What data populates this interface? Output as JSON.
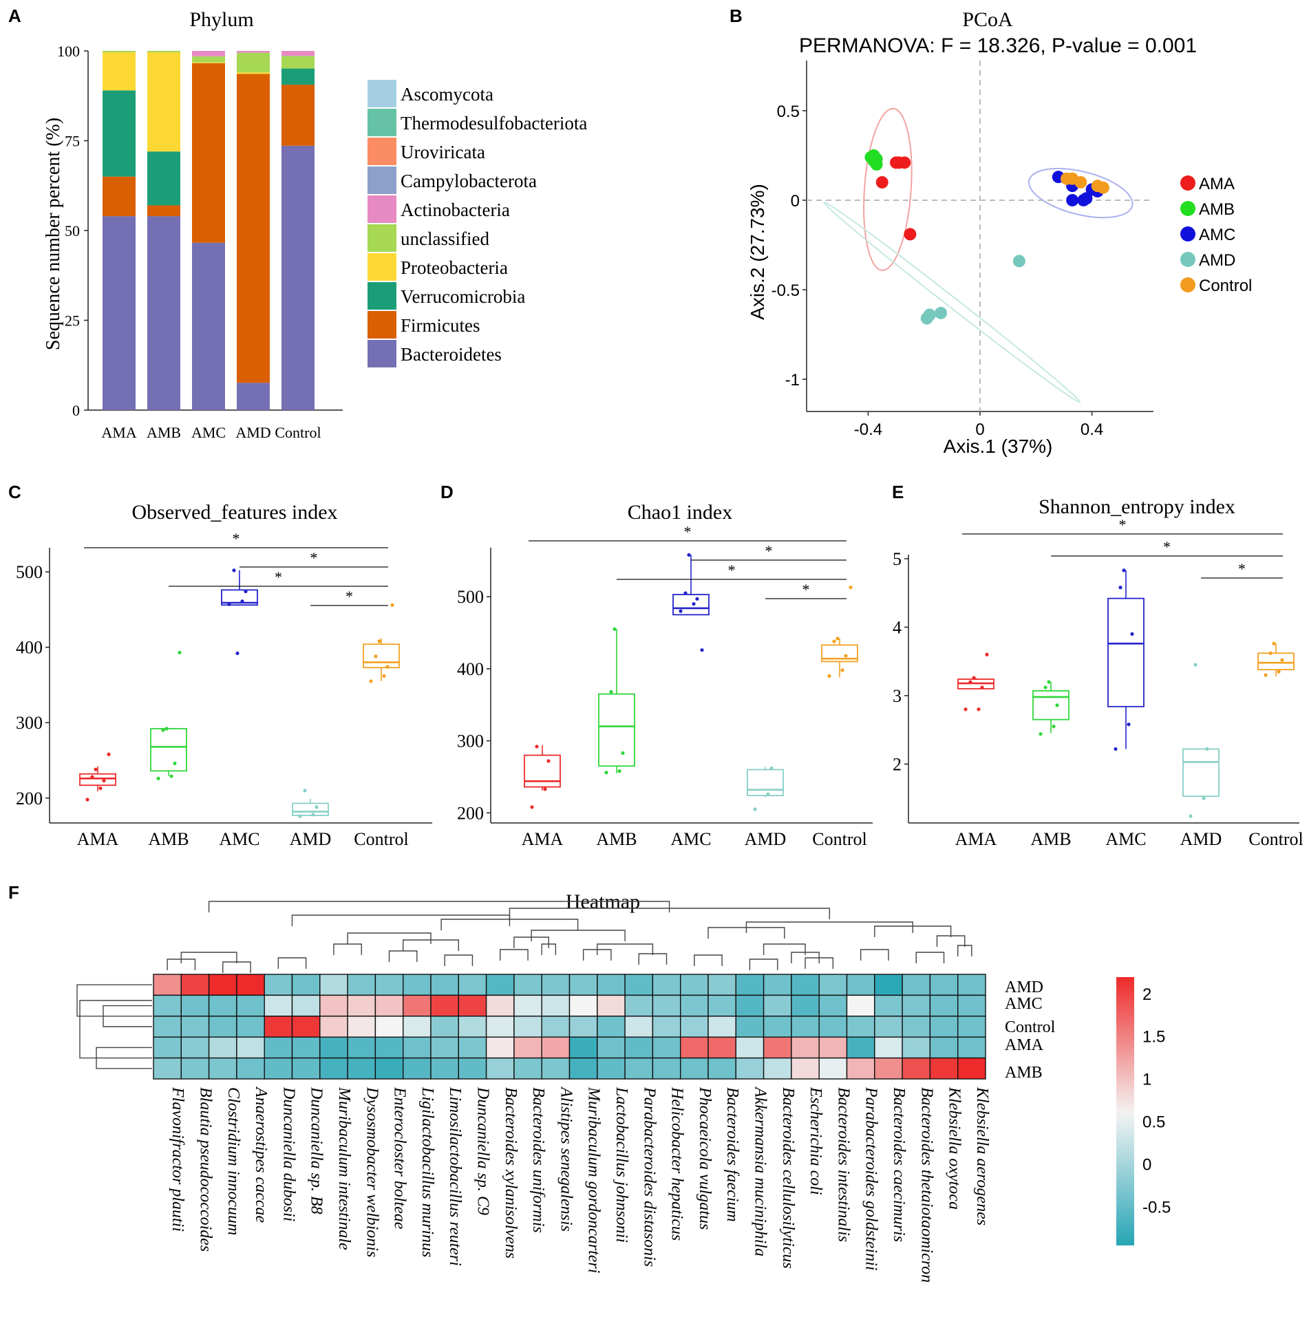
{
  "panel_letters": {
    "a": "A",
    "b": "B",
    "c": "C",
    "d": "D",
    "e": "E",
    "f": "F"
  },
  "chart_data": [
    {
      "id": "A",
      "type": "bar",
      "stacked": true,
      "title": "Phylum",
      "ylabel": "Sequence number percent (%)",
      "xlabel": "",
      "ylim": [
        0,
        100
      ],
      "yticks": [
        "0",
        "25",
        "50",
        "75",
        "100"
      ],
      "categories": [
        "AMA",
        "AMB",
        "AMC",
        "AMD",
        "Control"
      ],
      "series": [
        {
          "name": "Bacteroidetes",
          "color": "#7570b3",
          "values": [
            54,
            54,
            46.6,
            7.6,
            73.6
          ]
        },
        {
          "name": "Firmicutes",
          "color": "#d95f02",
          "values": [
            11,
            3,
            50,
            86,
            17
          ]
        },
        {
          "name": "Verrucomicrobia",
          "color": "#1b9e77",
          "values": [
            24,
            15,
            0,
            0,
            4.5
          ]
        },
        {
          "name": "Proteobacteria",
          "color": "#fdd835",
          "values": [
            10.6,
            27.6,
            0.2,
            0.4,
            0
          ]
        },
        {
          "name": "unclassified",
          "color": "#a6d854",
          "values": [
            0.4,
            0.4,
            1.7,
            5.5,
            3.5
          ]
        },
        {
          "name": "Actinobacteria",
          "color": "#e78ac3",
          "values": [
            0,
            0,
            1.5,
            0.5,
            1.4
          ]
        },
        {
          "name": "Campylobacterota",
          "color": "#8da0cb",
          "values": [
            0,
            0,
            0,
            0,
            0
          ]
        },
        {
          "name": "Uroviricata",
          "color": "#fc8d62",
          "values": [
            0,
            0,
            0,
            0,
            0
          ]
        },
        {
          "name": "Thermodesulfobacteriota",
          "color": "#66c2a5",
          "values": [
            0,
            0,
            0,
            0,
            0
          ]
        },
        {
          "name": "Ascomycota",
          "color": "#a6cee3",
          "values": [
            0,
            0,
            0,
            0,
            0
          ]
        }
      ],
      "legend_order": [
        "Ascomycota",
        "Thermodesulfobacteriota",
        "Uroviricata",
        "Campylobacterota",
        "Actinobacteria",
        "unclassified",
        "Proteobacteria",
        "Verrucomicrobia",
        "Firmicutes",
        "Bacteroidetes"
      ]
    },
    {
      "id": "B",
      "type": "scatter",
      "title": "PCoA",
      "subtitle": "PERMANOVA: F = 18.326, P-value = 0.001",
      "xlabel": "Axis.1 (37%)",
      "ylabel": "Axis.2 (27.73%)",
      "xlim": [
        -0.62,
        0.62
      ],
      "ylim": [
        -1.18,
        0.78
      ],
      "xticks": [
        {
          "v": -0.4,
          "label": "-0.4"
        },
        {
          "v": 0,
          "label": "0"
        },
        {
          "v": 0.4,
          "label": "0.4"
        }
      ],
      "yticks": [
        {
          "v": 0.5,
          "label": "0.5"
        },
        {
          "v": 0,
          "label": "0"
        },
        {
          "v": -0.5,
          "label": "-0.5"
        },
        {
          "v": -1,
          "label": "-1"
        }
      ],
      "groups": [
        {
          "name": "AMA",
          "color": "#ee1c1c",
          "points": [
            [
              -0.29,
              0.21
            ],
            [
              -0.27,
              0.21
            ],
            [
              -0.3,
              0.21
            ],
            [
              -0.35,
              0.1
            ],
            [
              -0.25,
              -0.19
            ]
          ]
        },
        {
          "name": "AMB",
          "color": "#22dd22",
          "points": [
            [
              -0.38,
              0.25
            ],
            [
              -0.37,
              0.23
            ],
            [
              -0.39,
              0.24
            ],
            [
              -0.37,
              0.2
            ],
            [
              -0.38,
              0.22
            ]
          ]
        },
        {
          "name": "AMC",
          "color": "#1111dd",
          "points": [
            [
              0.28,
              0.13
            ],
            [
              0.33,
              0.08
            ],
            [
              0.4,
              0.06
            ],
            [
              0.42,
              0.05
            ],
            [
              0.33,
              0
            ],
            [
              0.37,
              0
            ],
            [
              0.38,
              0.01
            ]
          ]
        },
        {
          "name": "AMD",
          "color": "#76c8bd",
          "points": [
            [
              0.14,
              -0.34
            ],
            [
              -0.18,
              -0.64
            ],
            [
              -0.14,
              -0.63
            ],
            [
              -0.19,
              -0.66
            ]
          ]
        },
        {
          "name": "Control",
          "color": "#f29b1f",
          "points": [
            [
              0.33,
              0.12
            ],
            [
              0.36,
              0.1
            ],
            [
              0.42,
              0.08
            ],
            [
              0.44,
              0.07
            ],
            [
              0.31,
              0.12
            ]
          ]
        }
      ],
      "ellipses": [
        {
          "group": "AMA",
          "cx": -0.33,
          "cy": 0.06,
          "rx": 0.29,
          "ry": 0.13,
          "angle": 86
        },
        {
          "group": "AMC",
          "cx": 0.36,
          "cy": 0.04,
          "rx": 0.19,
          "ry": 0.12,
          "angle": -14
        },
        {
          "group": "AMD",
          "cx": -0.1,
          "cy": -0.57,
          "rx": 0.58,
          "ry": 0.028,
          "angle": -38
        }
      ]
    },
    {
      "id": "C",
      "type": "box",
      "title": "Observed_features index",
      "categories": [
        "AMA",
        "AMB",
        "AMC",
        "AMD",
        "Control"
      ],
      "ylim": [
        167,
        532
      ],
      "yticks": [
        200,
        300,
        400,
        500
      ],
      "boxes": [
        {
          "q1": 217,
          "median": 226,
          "q3": 232,
          "min": 209,
          "max": 242,
          "points": [
            198,
            213,
            223,
            228,
            238,
            258
          ]
        },
        {
          "q1": 236,
          "median": 268,
          "q3": 292,
          "min": 229,
          "max": 293,
          "points": [
            226,
            229,
            246,
            290,
            292,
            393
          ]
        },
        {
          "q1": 456,
          "median": 459,
          "q3": 476,
          "min": 455,
          "max": 502,
          "points": [
            457,
            461,
            474,
            502,
            392
          ]
        },
        {
          "q1": 177,
          "median": 182,
          "q3": 193,
          "min": 177,
          "max": 199,
          "points": [
            176,
            178,
            188,
            210
          ]
        },
        {
          "q1": 373,
          "median": 380,
          "q3": 404,
          "min": 355,
          "max": 412,
          "points": [
            355,
            362,
            374,
            388,
            408,
            456
          ]
        }
      ],
      "significance": [
        {
          "from": 0,
          "to": 4,
          "label": "*"
        },
        {
          "from": 2,
          "to": 4,
          "label": "*"
        },
        {
          "from": 1,
          "to": 4,
          "label": "*"
        },
        {
          "from": 3,
          "to": 4,
          "label": "*"
        }
      ]
    },
    {
      "id": "D",
      "type": "box",
      "title": "Chao1 index",
      "categories": [
        "AMA",
        "AMB",
        "AMC",
        "AMD",
        "Control"
      ],
      "ylim": [
        186,
        568
      ],
      "yticks": [
        200,
        300,
        400,
        500
      ],
      "boxes": [
        {
          "q1": 236,
          "median": 244,
          "q3": 280,
          "min": 231,
          "max": 294,
          "points": [
            208,
            233,
            272,
            292
          ]
        },
        {
          "q1": 265,
          "median": 320,
          "q3": 365,
          "min": 255,
          "max": 455,
          "points": [
            256,
            258,
            283,
            368,
            455
          ]
        },
        {
          "q1": 475,
          "median": 484,
          "q3": 503,
          "min": 475,
          "max": 558,
          "points": [
            480,
            490,
            497,
            505,
            558,
            426
          ]
        },
        {
          "q1": 224,
          "median": 232,
          "q3": 260,
          "min": 222,
          "max": 264,
          "points": [
            205,
            226,
            262
          ]
        },
        {
          "q1": 410,
          "median": 414,
          "q3": 433,
          "min": 388,
          "max": 442,
          "points": [
            390,
            398,
            418,
            438,
            442,
            513
          ]
        }
      ],
      "significance": [
        {
          "from": 0,
          "to": 4,
          "label": "*"
        },
        {
          "from": 2,
          "to": 4,
          "label": "*"
        },
        {
          "from": 1,
          "to": 4,
          "label": "*"
        },
        {
          "from": 3,
          "to": 4,
          "label": "*"
        }
      ]
    },
    {
      "id": "E",
      "type": "box",
      "title": "Shannon_entropy index",
      "categories": [
        "AMA",
        "AMB",
        "AMC",
        "AMD",
        "Control"
      ],
      "ylim": [
        1.14,
        5.06
      ],
      "yticks": [
        2,
        3,
        4,
        5
      ],
      "boxes": [
        {
          "q1": 3.1,
          "median": 3.18,
          "q3": 3.24,
          "min": 3.1,
          "max": 3.26,
          "points": [
            2.8,
            2.8,
            3.12,
            3.2,
            3.26,
            3.6
          ]
        },
        {
          "q1": 2.65,
          "median": 2.98,
          "q3": 3.07,
          "min": 2.45,
          "max": 3.2,
          "points": [
            2.44,
            2.55,
            2.86,
            3.12,
            3.2
          ]
        },
        {
          "q1": 2.84,
          "median": 3.76,
          "q3": 4.42,
          "min": 2.22,
          "max": 4.83,
          "points": [
            2.22,
            2.58,
            3.9,
            4.58,
            4.83
          ]
        },
        {
          "q1": 1.53,
          "median": 2.03,
          "q3": 2.22,
          "min": 1.53,
          "max": 2.22,
          "points": [
            1.24,
            1.5,
            2.22,
            3.45
          ]
        },
        {
          "q1": 3.38,
          "median": 3.48,
          "q3": 3.62,
          "min": 3.28,
          "max": 3.76,
          "points": [
            3.3,
            3.35,
            3.52,
            3.62,
            3.76
          ]
        }
      ],
      "significance": [
        {
          "from": 0,
          "to": 4,
          "label": "*"
        },
        {
          "from": 1,
          "to": 4,
          "label": "*"
        },
        {
          "from": 3,
          "to": 4,
          "label": "*"
        }
      ]
    },
    {
      "id": "F",
      "type": "heatmap",
      "title": "Heatmap",
      "rows": [
        "AMD",
        "AMC",
        "Control",
        "AMA",
        "AMB"
      ],
      "columns": [
        "Flavonifractor plautii",
        "Blautia pseudococcoides",
        "Clostridium innocuum",
        "Anaerostipes caccae",
        "Duncaniella dubosii",
        "Duncaniella sp. B8",
        "Muribaculum intestinale",
        "Dysosmobacter welbionis",
        "Enterocloster bolteae",
        "Ligilactobacillus murinus",
        "Limosilactobacillus reuteri",
        "Duncaniella sp. C9",
        "Bacteroides xylanisolvens",
        "Bacteroides uniformis",
        "Alistipes senegalensis",
        "Muribaculum gordoncarteri",
        "Lactobacillus johnsonii",
        "Parabacteroides distasonis",
        "Helicobacter hepaticus",
        "Phocaeicola vulgatus",
        "Bacteroides faecium",
        "Akkermansia muciniphila",
        "Bacteroides cellulosilyticus",
        "Escherichia coli",
        "Bacteroides intestinalis",
        "Parabacteroides goldsteinii",
        "Bacteroides caecimuris",
        "Bacteroides thetaiotaomicron",
        "Klebsiella oxytoca",
        "Klebsiella aerogenes"
      ],
      "values": [
        [
          1.4,
          2.0,
          2.2,
          2.2,
          -0.3,
          -0.4,
          0.1,
          -0.3,
          -0.3,
          -0.4,
          -0.4,
          -0.3,
          -0.6,
          -0.3,
          -0.3,
          -0.3,
          -0.4,
          -0.5,
          -0.3,
          -0.3,
          -0.2,
          -0.6,
          -0.4,
          -0.6,
          -0.3,
          -0.4,
          -0.9,
          -0.4,
          -0.4,
          -0.4
        ],
        [
          -0.3,
          -0.4,
          -0.4,
          -0.4,
          0.3,
          0.2,
          1.0,
          0.9,
          1.0,
          1.6,
          2.0,
          2.0,
          0.8,
          0.4,
          0.3,
          0.6,
          0.8,
          -0.2,
          -0.2,
          -0.3,
          -0.3,
          -0.6,
          -0.2,
          -0.6,
          -0.4,
          0.6,
          -0.3,
          -0.3,
          -0.4,
          -0.4
        ],
        [
          -0.3,
          -0.3,
          -0.4,
          -0.4,
          2.1,
          2.1,
          0.9,
          0.7,
          0.6,
          0.4,
          -0.2,
          0.1,
          0.4,
          0.2,
          -0.1,
          -0.1,
          -0.4,
          0.3,
          -0.1,
          -0.1,
          0.3,
          -0.5,
          -0.4,
          -0.4,
          -0.4,
          -0.3,
          -0.2,
          -0.3,
          -0.4,
          -0.4
        ],
        [
          -0.3,
          -0.2,
          0.1,
          0.2,
          -0.5,
          -0.5,
          -0.7,
          -0.6,
          -0.6,
          -0.4,
          -0.3,
          -0.3,
          0.7,
          1.1,
          1.2,
          -0.8,
          -0.4,
          -0.5,
          -0.4,
          1.7,
          1.7,
          0.3,
          1.6,
          1.1,
          1.1,
          -0.7,
          0.4,
          -0.1,
          -0.4,
          -0.4
        ],
        [
          -0.2,
          -0.3,
          -0.3,
          -0.4,
          -0.5,
          -0.5,
          -0.7,
          -0.7,
          -0.8,
          -0.6,
          -0.5,
          -0.5,
          -0.1,
          -0.3,
          -0.3,
          -0.7,
          -0.5,
          -0.4,
          -0.4,
          -0.4,
          -0.4,
          -0.1,
          0.2,
          0.8,
          0.5,
          1.1,
          1.4,
          1.9,
          2.1,
          2.2
        ]
      ],
      "colorbar": {
        "min": -0.95,
        "max": 2.2,
        "ticks": [
          "2",
          "1.5",
          "1",
          "0.5",
          "0",
          "-0.5"
        ]
      },
      "colors": {
        "low": "#26a5b5",
        "mid": "#f4f4f4",
        "high": "#ee2a2a"
      }
    }
  ]
}
